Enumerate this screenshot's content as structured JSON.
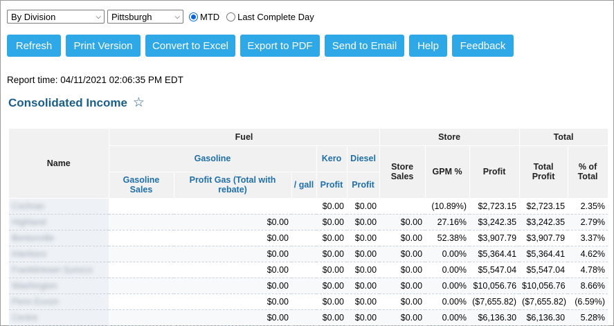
{
  "filters": {
    "division": "By Division",
    "region": "Pittsburgh",
    "radio_mtd": "MTD",
    "radio_last_day": "Last Complete Day"
  },
  "toolbar": {
    "refresh": "Refresh",
    "print": "Print Version",
    "excel": "Convert to Excel",
    "pdf": "Export to PDF",
    "email": "Send to Email",
    "help": "Help",
    "feedback": "Feedback"
  },
  "report_time": "Report time: 04/11/2021 02:06:35 PM EDT",
  "report_title": "Consolidated Income",
  "colors": {
    "accent": "#2ea8e6",
    "title": "#1a5f8a",
    "link": "#1f6fa8"
  },
  "table": {
    "headers": {
      "name": "Name",
      "fuel": "Fuel",
      "store": "Store",
      "total": "Total",
      "gasoline": "Gasoline",
      "kero": "Kero",
      "diesel": "Diesel",
      "gasoline_sales": "Gasoline Sales",
      "profit_gas": "Profit Gas (Total with rebate)",
      "per_gal": "/ gall",
      "kero_profit": "Profit",
      "diesel_profit": "Profit",
      "store_sales": "Store Sales",
      "gpm": "GPM %",
      "store_profit": "Profit",
      "total_profit": "Total Profit",
      "pct_total": "% of Total"
    },
    "rows": [
      {
        "name": "Cochran",
        "gas_sales": "",
        "profit_gas": "",
        "per_gal": "",
        "kero": "$0.00",
        "diesel": "$0.00",
        "store_sales": "",
        "gpm": "(10.89%)",
        "store_profit": "$2,723.15",
        "total_profit": "$2,723.15",
        "pct": "2.35%"
      },
      {
        "name": "Highland",
        "gas_sales": "",
        "profit_gas": "$0.00",
        "per_gal": "",
        "kero": "$0.00",
        "diesel": "$0.00",
        "store_sales": "$0.00",
        "gpm": "27.16%",
        "store_profit": "$3,242.35",
        "total_profit": "$3,242.35",
        "pct": "2.79%"
      },
      {
        "name": "Bentonville",
        "gas_sales": "",
        "profit_gas": "$0.00",
        "per_gal": "",
        "kero": "$0.00",
        "diesel": "$0.00",
        "store_sales": "$0.00",
        "gpm": "52.38%",
        "store_profit": "$3,907.79",
        "total_profit": "$3,907.79",
        "pct": "3.37%"
      },
      {
        "name": "Interboro",
        "gas_sales": "",
        "profit_gas": "$0.00",
        "per_gal": "",
        "kero": "$0.00",
        "diesel": "$0.00",
        "store_sales": "$0.00",
        "gpm": "0.00%",
        "store_profit": "$5,364.41",
        "total_profit": "$5,364.41",
        "pct": "4.62%"
      },
      {
        "name": "Franklintown Sunoco",
        "gas_sales": "",
        "profit_gas": "$0.00",
        "per_gal": "",
        "kero": "$0.00",
        "diesel": "$0.00",
        "store_sales": "$0.00",
        "gpm": "0.00%",
        "store_profit": "$5,547.04",
        "total_profit": "$5,547.04",
        "pct": "4.78%"
      },
      {
        "name": "Washington",
        "gas_sales": "",
        "profit_gas": "$0.00",
        "per_gal": "",
        "kero": "$0.00",
        "diesel": "$0.00",
        "store_sales": "$0.00",
        "gpm": "0.00%",
        "store_profit": "$10,056.76",
        "total_profit": "$10,056.76",
        "pct": "8.66%"
      },
      {
        "name": "Penn Exxon",
        "gas_sales": "",
        "profit_gas": "$0.00",
        "per_gal": "",
        "kero": "$0.00",
        "diesel": "$0.00",
        "store_sales": "$0.00",
        "gpm": "0.00%",
        "store_profit": "($7,655.82)",
        "total_profit": "($7,655.82)",
        "pct": "(6.59%)"
      },
      {
        "name": "Centre",
        "gas_sales": "",
        "profit_gas": "$0.00",
        "per_gal": "",
        "kero": "$0.00",
        "diesel": "$0.00",
        "store_sales": "$0.00",
        "gpm": "0.00%",
        "store_profit": "$6,136.30",
        "total_profit": "$6,136.30",
        "pct": "5.28%"
      }
    ]
  }
}
